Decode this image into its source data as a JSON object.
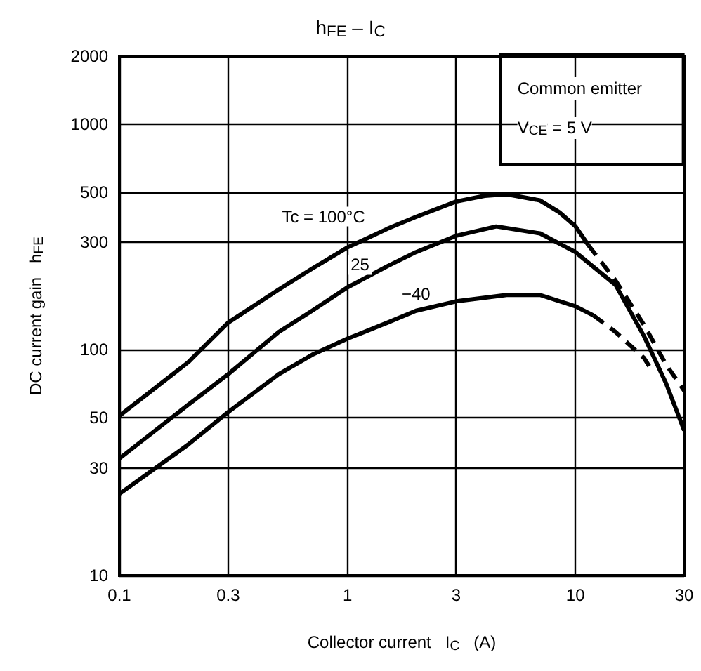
{
  "chart_data": {
    "type": "line",
    "title": "h$_{FE}$ – I$_{C}$",
    "xlabel": "Collector current   I$_{C}$   (A)",
    "ylabel": "DC current gain   h$_{FE}$",
    "log": "xy",
    "grid": true,
    "marker": "none",
    "xlim": [
      0.1,
      30
    ],
    "ylim": [
      10,
      2000
    ],
    "xticks": [
      0.1,
      0.3,
      1,
      3,
      10,
      30
    ],
    "yticks": [
      10,
      30,
      50,
      100,
      300,
      500,
      1000,
      2000
    ],
    "annotations": [
      "Common emitter",
      "V$_{CE}$ = 5 V"
    ],
    "series": [
      {
        "name": "Tc = 100°C",
        "color": "#000000",
        "line_style": "solid",
        "x": [
          0.1,
          0.2,
          0.3,
          0.5,
          0.7,
          1,
          1.5,
          2,
          3,
          4,
          5,
          7,
          8.5,
          10,
          11.4
        ],
        "values": [
          51,
          88,
          132,
          185,
          229,
          284,
          344,
          388,
          454,
          481,
          489,
          459,
          407,
          353,
          291
        ]
      },
      {
        "color": "#000000",
        "line_style": "dashed",
        "x": [
          11.4,
          15,
          20,
          25,
          30
        ],
        "values": [
          291,
          203,
          129,
          86,
          66
        ]
      },
      {
        "name": "25",
        "color": "#000000",
        "line_style": "solid",
        "x": [
          0.1,
          0.2,
          0.3,
          0.5,
          0.7,
          1,
          1.5,
          2,
          3,
          4.5,
          7,
          10,
          15,
          20,
          25,
          30
        ],
        "values": [
          33,
          57,
          78,
          120,
          149,
          189,
          235,
          271,
          320,
          352,
          328,
          271,
          194,
          115,
          71,
          44
        ]
      },
      {
        "name": "−40",
        "color": "#000000",
        "line_style": "solid",
        "x": [
          0.1,
          0.2,
          0.3,
          0.5,
          0.7,
          1,
          1.5,
          2,
          3,
          5,
          7,
          10,
          12
        ],
        "values": [
          23,
          38,
          53,
          78,
          95,
          112,
          132,
          149,
          164,
          175,
          175,
          156,
          142
        ]
      },
      {
        "color": "#000000",
        "line_style": "dashed",
        "x": [
          12,
          15,
          20,
          21.5
        ],
        "values": [
          142,
          120,
          92,
          82
        ]
      }
    ]
  }
}
